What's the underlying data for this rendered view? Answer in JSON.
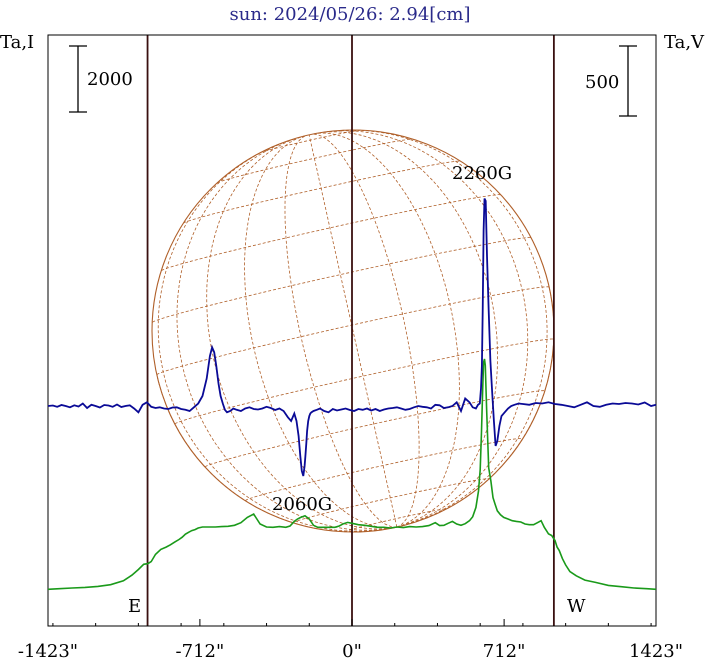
{
  "chart_data": {
    "type": "line",
    "title": "sun: 2024/05/26: 2.94[cm]",
    "left_axis_label": "Ta,I",
    "right_axis_label": "Ta,V",
    "left_scale_bar": "2000",
    "right_scale_bar": "500",
    "xlim": [
      -1423,
      1423
    ],
    "x_ticks": [
      {
        "value": -1423,
        "label": "-1423\""
      },
      {
        "value": -712,
        "label": "-712\""
      },
      {
        "value": 0,
        "label": "0\""
      },
      {
        "value": 712,
        "label": "712\""
      },
      {
        "value": 1423,
        "label": "1423\""
      }
    ],
    "vertical_lines": [
      -957,
      0,
      945
    ],
    "limb_labels": {
      "east": "E",
      "west": "W"
    },
    "annotations": [
      {
        "text": "2260G",
        "x": 620
      },
      {
        "text": "2060G",
        "x": -225
      }
    ],
    "colors": {
      "stokes_i": "#1a9a1a",
      "stokes_v": "#0a0a96",
      "disk": "#b0602a",
      "axes": "#000000",
      "title": "#2a2a8a",
      "vlines": "#3a1010"
    },
    "series": [
      {
        "key": "stokes_i",
        "x": [
          -1423,
          -1370,
          -1310,
          -1250,
          -1190,
          -1130,
          -1070,
          -1030,
          -1000,
          -975,
          -955,
          -940,
          -920,
          -895,
          -870,
          -850,
          -830,
          -810,
          -795,
          -780,
          -765,
          -750,
          -735,
          -720,
          -700,
          -670,
          -640,
          -610,
          -580,
          -550,
          -520,
          -490,
          -460,
          -430,
          -400,
          -370,
          -340,
          -310,
          -290,
          -270,
          -255,
          -240,
          -220,
          -200,
          -180,
          -160,
          -140,
          -110,
          -80,
          -60,
          -40,
          -20,
          0,
          30,
          60,
          90,
          120,
          150,
          180,
          210,
          240,
          270,
          300,
          330,
          360,
          390,
          410,
          430,
          450,
          470,
          490,
          510,
          530,
          550,
          565,
          580,
          592,
          600,
          606,
          612,
          616,
          620,
          624,
          630,
          640,
          650,
          660,
          670,
          680,
          695,
          710,
          730,
          750,
          770,
          790,
          810,
          830,
          850,
          870,
          885,
          900,
          910,
          920,
          935,
          950,
          960,
          970,
          985,
          1000,
          1020,
          1050,
          1090,
          1140,
          1200,
          1260,
          1320,
          1380,
          1423
        ],
        "y": [
          20,
          40,
          60,
          80,
          110,
          160,
          280,
          450,
          620,
          780,
          800,
          860,
          1080,
          1230,
          1300,
          1370,
          1450,
          1530,
          1600,
          1690,
          1750,
          1800,
          1830,
          1880,
          1910,
          1910,
          1910,
          1920,
          1930,
          1960,
          2040,
          2200,
          2300,
          2000,
          1910,
          1900,
          1920,
          1900,
          1940,
          2080,
          2150,
          2200,
          2250,
          2150,
          1960,
          1900,
          1900,
          1900,
          1900,
          1940,
          2010,
          2050,
          2020,
          1980,
          1960,
          1930,
          1900,
          1900,
          1880,
          1910,
          1890,
          1920,
          1910,
          1920,
          1950,
          2040,
          1950,
          1960,
          2020,
          2080,
          2000,
          1960,
          2010,
          2100,
          2220,
          2500,
          3000,
          3650,
          4800,
          6100,
          6900,
          7000,
          6800,
          5500,
          3700,
          3300,
          2800,
          2600,
          2400,
          2280,
          2200,
          2150,
          2100,
          2080,
          2060,
          2000,
          1980,
          1980,
          2050,
          2100,
          1900,
          1800,
          1700,
          1650,
          1500,
          1300,
          1200,
          950,
          760,
          560,
          430,
          300,
          230,
          140,
          100,
          60,
          40,
          20
        ]
      },
      {
        "key": "stokes_v",
        "x": [
          -1423,
          -1400,
          -1380,
          -1360,
          -1340,
          -1320,
          -1300,
          -1280,
          -1260,
          -1240,
          -1220,
          -1200,
          -1180,
          -1160,
          -1140,
          -1120,
          -1100,
          -1080,
          -1060,
          -1040,
          -1020,
          -1000,
          -980,
          -960,
          -940,
          -920,
          -900,
          -880,
          -860,
          -840,
          -820,
          -800,
          -780,
          -760,
          -740,
          -720,
          -700,
          -680,
          -665,
          -655,
          -645,
          -635,
          -625,
          -615,
          -605,
          -595,
          -585,
          -570,
          -555,
          -540,
          -520,
          -500,
          -480,
          -460,
          -440,
          -420,
          -400,
          -380,
          -360,
          -340,
          -320,
          -300,
          -285,
          -270,
          -260,
          -250,
          -242,
          -235,
          -228,
          -222,
          -218,
          -214,
          -210,
          -205,
          -200,
          -195,
          -190,
          -180,
          -165,
          -150,
          -130,
          -110,
          -90,
          -70,
          -50,
          -30,
          -10,
          10,
          30,
          50,
          70,
          90,
          110,
          130,
          150,
          170,
          190,
          210,
          230,
          250,
          270,
          290,
          310,
          330,
          350,
          370,
          390,
          410,
          430,
          450,
          470,
          490,
          510,
          530,
          550,
          565,
          580,
          590,
          598,
          604,
          608,
          612,
          616,
          620,
          626,
          632,
          640,
          648,
          656,
          664,
          672,
          680,
          690,
          700,
          715,
          730,
          745,
          760,
          780,
          800,
          830,
          860,
          890,
          920,
          950,
          980,
          1010,
          1040,
          1070,
          1100,
          1130,
          1160,
          1190,
          1220,
          1250,
          1280,
          1310,
          1340,
          1370,
          1400,
          1423
        ],
        "y": [
          0,
          2,
          -3,
          4,
          0,
          -5,
          3,
          -2,
          10,
          -8,
          5,
          0,
          -6,
          4,
          2,
          -3,
          6,
          -4,
          0,
          3,
          -10,
          -25,
          5,
          15,
          -3,
          -8,
          -5,
          -10,
          -12,
          -6,
          -5,
          -12,
          -15,
          -20,
          -5,
          10,
          40,
          110,
          200,
          235,
          215,
          160,
          90,
          40,
          10,
          -15,
          -25,
          -20,
          -10,
          -15,
          -20,
          -10,
          -5,
          -12,
          -14,
          -10,
          -3,
          -8,
          -16,
          -10,
          -20,
          -45,
          -60,
          -30,
          -60,
          -120,
          -200,
          -260,
          -280,
          -240,
          -200,
          -150,
          -100,
          -60,
          -40,
          -30,
          -25,
          -20,
          -15,
          -10,
          -20,
          -25,
          -12,
          -18,
          -14,
          -10,
          -16,
          -20,
          -12,
          -15,
          -10,
          -18,
          -12,
          -20,
          -14,
          -10,
          -8,
          -5,
          -10,
          -15,
          -12,
          -5,
          0,
          -3,
          -5,
          -10,
          5,
          3,
          -8,
          -5,
          0,
          15,
          -20,
          30,
          15,
          -5,
          -10,
          5,
          10,
          70,
          160,
          380,
          700,
          830,
          820,
          600,
          380,
          180,
          60,
          -60,
          -160,
          -140,
          -80,
          -40,
          -25,
          -10,
          0,
          5,
          10,
          8,
          5,
          12,
          10,
          15,
          8,
          5,
          0,
          -5,
          5,
          15,
          0,
          -3,
          5,
          10,
          8,
          12,
          10,
          6,
          14,
          0,
          5
        ],
        "v_scale": 0.25
      }
    ]
  }
}
